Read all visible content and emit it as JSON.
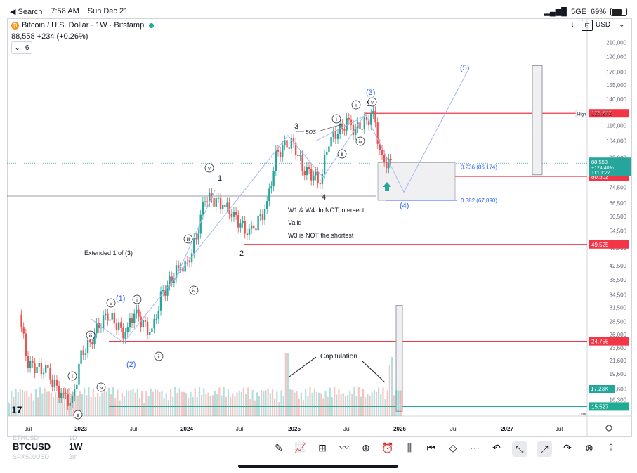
{
  "status": {
    "back_label": "◀ Search",
    "time": "7:58 AM",
    "date": "Sun Dec 21",
    "network": "5GE",
    "battery": "69%",
    "battery_level": 0.69
  },
  "header": {
    "title": "Bitcoin / U.S. Dollar · 1W · Bitstamp",
    "price_change": "88,558  +234 (+0.26%)",
    "interval_value": "6",
    "currency": "USD"
  },
  "colors": {
    "up": "#26a69a",
    "down": "#ef5350",
    "level_red": "#f23645",
    "fib_blue": "#2962ff",
    "wave_blue": "#2962ff",
    "grid": "#f0f3fa"
  },
  "chart_data": {
    "type": "candlestick",
    "symbol": "BTCUSD",
    "timeframe": "1W",
    "y_scale": "log",
    "ylim": [
      14500,
      240000
    ],
    "x_ticks": [
      "Jul",
      "2023",
      "Jul",
      "2024",
      "Jul",
      "2025",
      "Jul",
      "2026",
      "Jul",
      "2027",
      "Jul"
    ],
    "y_ticks": [
      "210,000",
      "190,000",
      "170,000",
      "155,000",
      "140,000",
      "128,000",
      "116,000",
      "104,000",
      "92,000",
      "80,562",
      "74,500",
      "66,500",
      "60,500",
      "54,500",
      "48,500",
      "42,500",
      "38,500",
      "34,500",
      "31,500",
      "28,500",
      "26,000",
      "23,600",
      "21,600",
      "19,600",
      "17,600",
      "16,300",
      "15,479"
    ],
    "price_path": [
      {
        "x": "2022-06",
        "y": 30000
      },
      {
        "x": "2022-07",
        "y": 21000
      },
      {
        "x": "2022-09",
        "y": 20000
      },
      {
        "x": "2022-11",
        "y": 16500
      },
      {
        "x": "2022-12",
        "y": 16000
      },
      {
        "x": "2023-01",
        "y": 22500
      },
      {
        "x": "2023-02",
        "y": 24500
      },
      {
        "x": "2023-03",
        "y": 28000
      },
      {
        "x": "2023-04",
        "y": 30000
      },
      {
        "x": "2023-06",
        "y": 26000
      },
      {
        "x": "2023-07",
        "y": 30500
      },
      {
        "x": "2023-09",
        "y": 26000
      },
      {
        "x": "2023-10",
        "y": 34000
      },
      {
        "x": "2023-12",
        "y": 42000
      },
      {
        "x": "2024-01",
        "y": 43000
      },
      {
        "x": "2024-02",
        "y": 52000
      },
      {
        "x": "2024-03",
        "y": 70000
      },
      {
        "x": "2024-05",
        "y": 66000
      },
      {
        "x": "2024-06",
        "y": 62000
      },
      {
        "x": "2024-08",
        "y": 53000
      },
      {
        "x": "2024-10",
        "y": 65000
      },
      {
        "x": "2024-11",
        "y": 93000
      },
      {
        "x": "2024-12",
        "y": 101000
      },
      {
        "x": "2025-01",
        "y": 102000
      },
      {
        "x": "2025-02",
        "y": 86000
      },
      {
        "x": "2025-04",
        "y": 78000
      },
      {
        "x": "2025-05",
        "y": 104000
      },
      {
        "x": "2025-07",
        "y": 118000
      },
      {
        "x": "2025-08",
        "y": 112000
      },
      {
        "x": "2025-10",
        "y": 125000
      },
      {
        "x": "2025-11",
        "y": 90000
      },
      {
        "x": "2025-12",
        "y": 88558
      }
    ],
    "levels": [
      {
        "label": "126,572",
        "value": 126572,
        "color": "#f23645"
      },
      {
        "label": "126,272",
        "value": 126272,
        "tag": "High"
      },
      {
        "label": "80,562",
        "value": 80562,
        "color": "#f23645"
      },
      {
        "label": "49,525",
        "value": 49525,
        "color": "#f23645"
      },
      {
        "label": "24,755",
        "value": 24755,
        "color": "#f23645"
      },
      {
        "label": "15,527",
        "value": 15527,
        "color": "#22ab94"
      }
    ],
    "current_price": {
      "label": "88,558",
      "change": "+124.40%",
      "countdown": "11:01:27"
    },
    "volume_tag": "17.23K",
    "low_tag": "Low",
    "fib": [
      {
        "label": "0.236 (86,174)",
        "value": 86174
      },
      {
        "label": "0.382 (67,890)",
        "value": 67890
      }
    ],
    "annotations": {
      "extended": "Extended 1 of (3)",
      "notes": [
        "W1 & W4 do NOT intersect",
        "Valid",
        "W3 is NOT the shortest"
      ],
      "capitulation": "Capitulation",
      "bos": "BOS",
      "waves_major": [
        "1",
        "2",
        "3",
        "4",
        "5"
      ],
      "waves_paren": [
        "(1)",
        "(2)",
        "(3)",
        "(4)",
        "(5)"
      ],
      "waves_roman": [
        "i",
        "ii",
        "iii",
        "iv",
        "v"
      ]
    }
  },
  "bottom": {
    "symbol": "BTCUSD",
    "timeframe": "1W",
    "ghost_symbols": [
      "ETHUSD",
      "SPX500USD"
    ],
    "ghost_timeframes": [
      "1D",
      "2m"
    ],
    "tools": [
      "pencil-icon",
      "indicator-icon",
      "grid-icon",
      "drawing-icon",
      "add-icon",
      "alert-icon",
      "candles-icon",
      "replay-icon",
      "layers-icon",
      "more-icon",
      "undo-icon",
      "collapse-icon",
      "exit-icon",
      "redo-icon",
      "lock-icon",
      "share-icon"
    ]
  }
}
